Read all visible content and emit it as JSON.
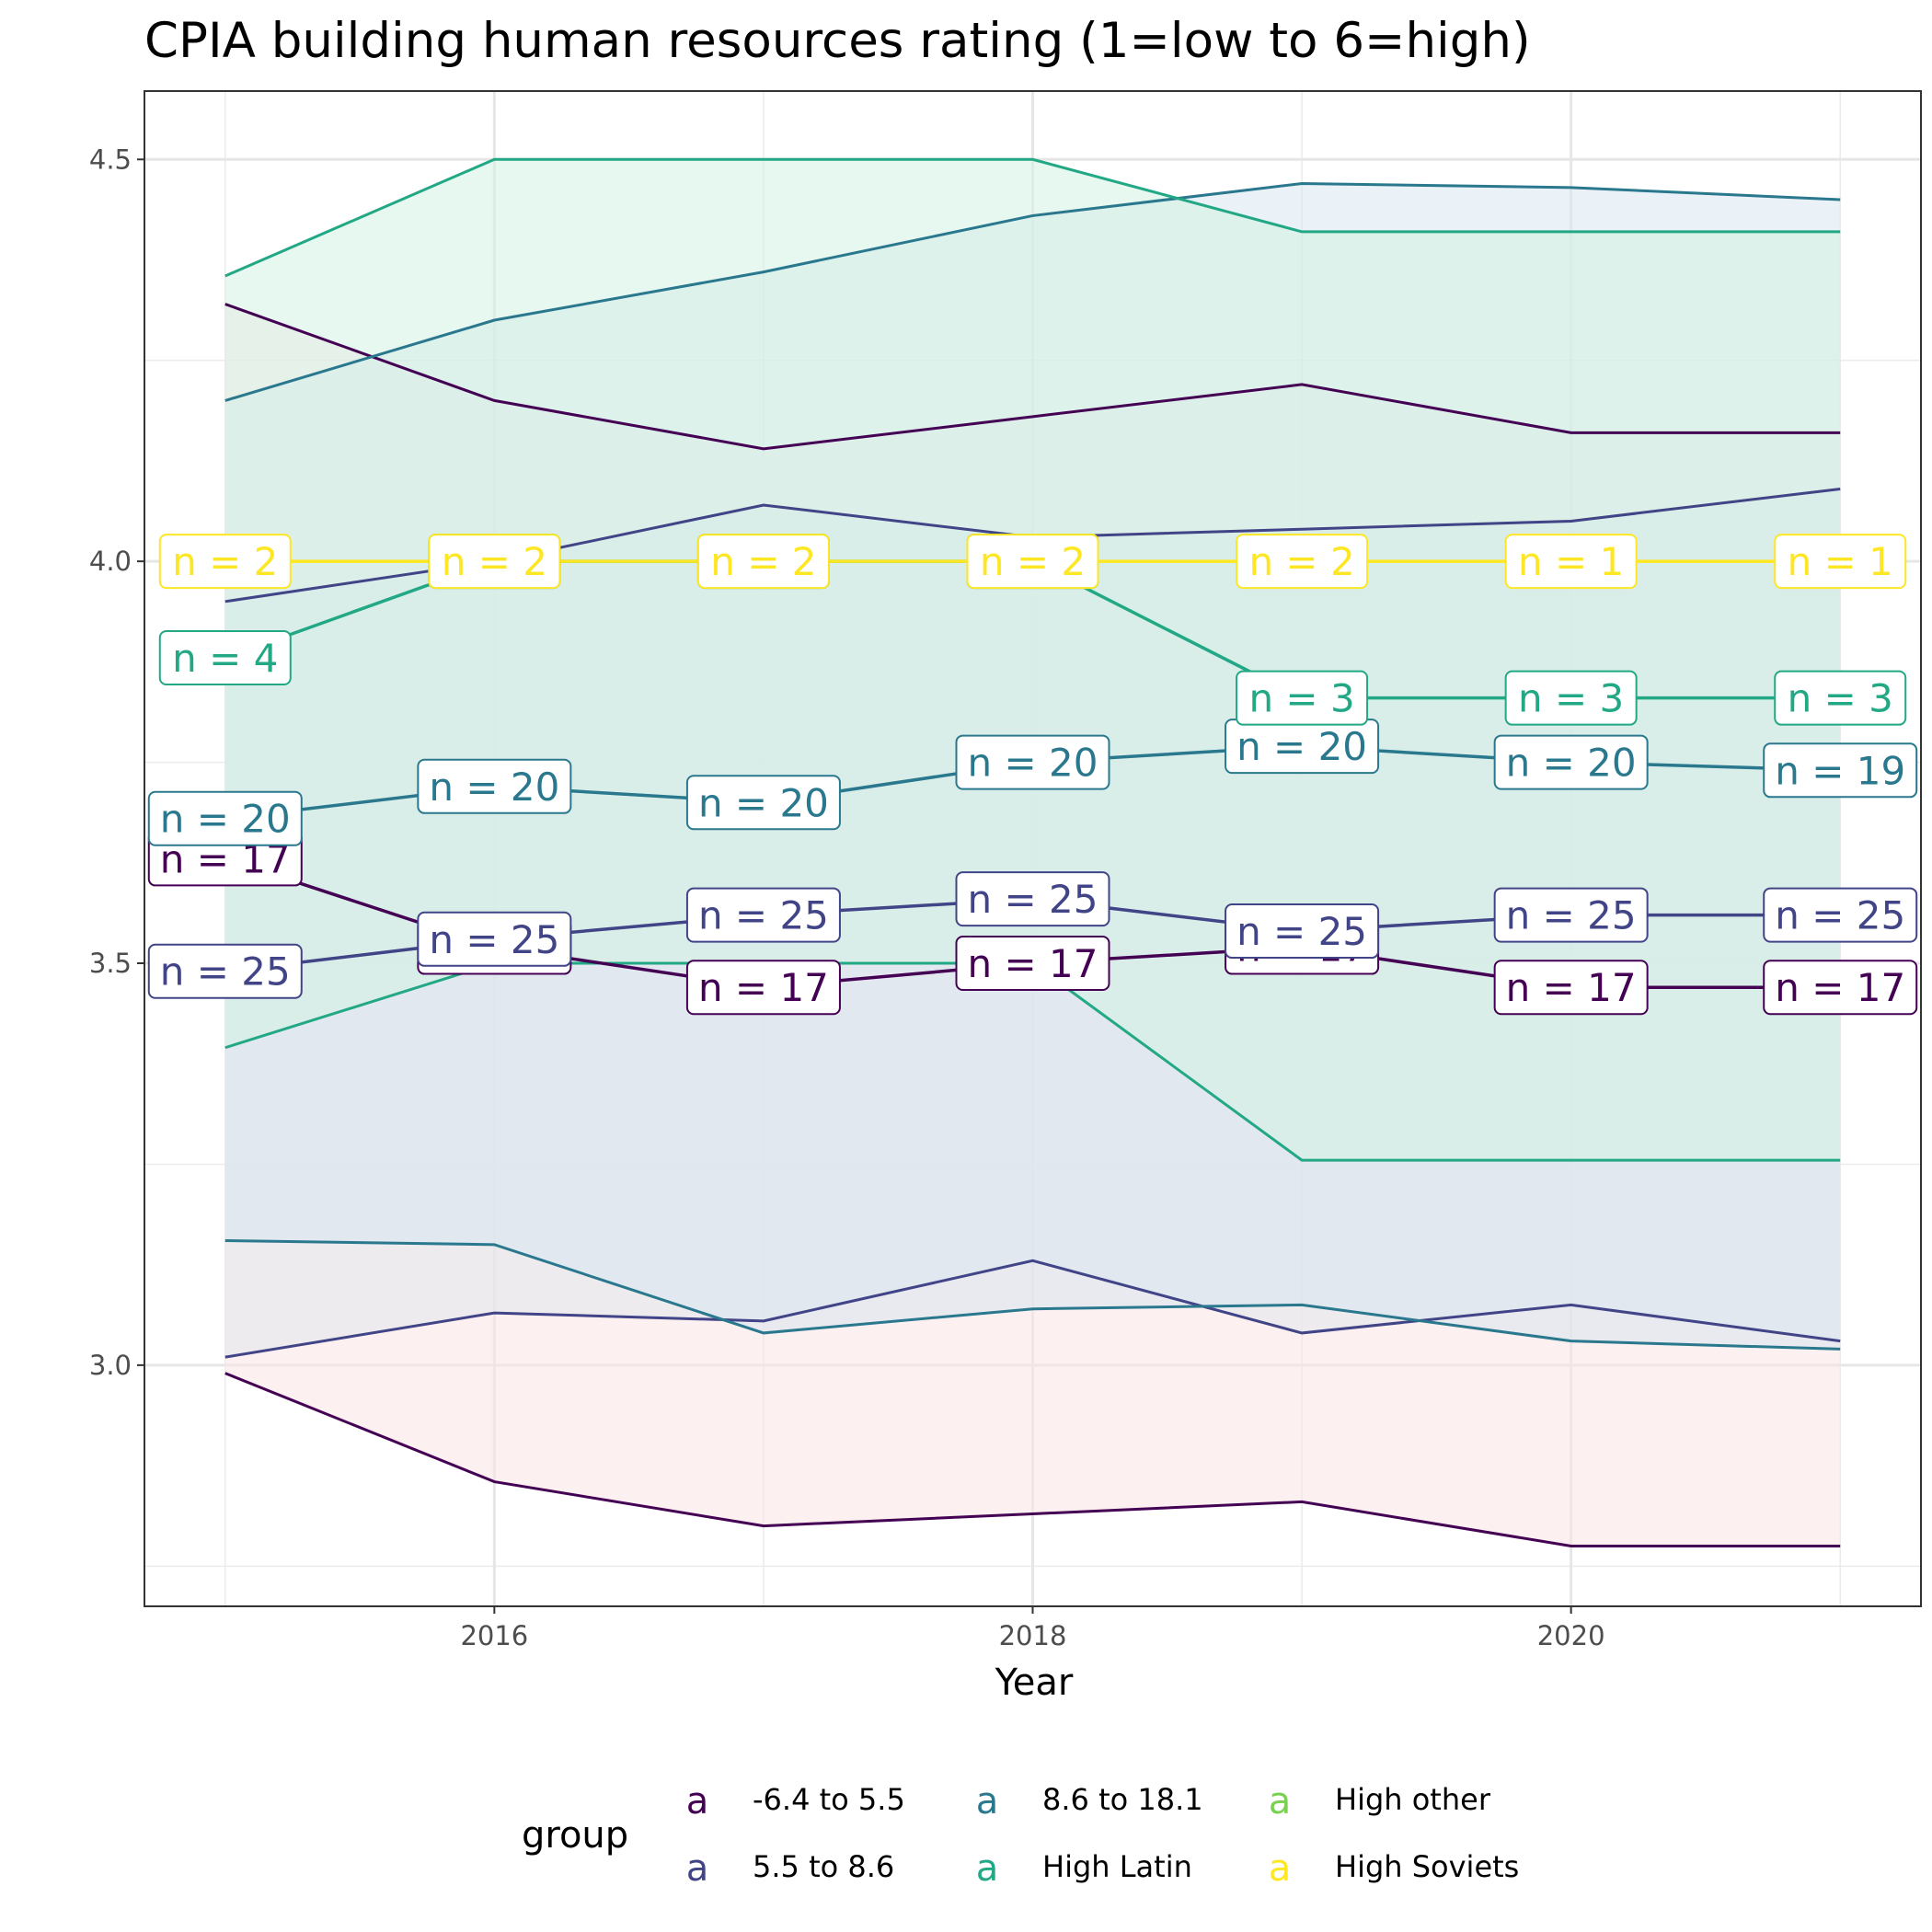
{
  "chart_data": {
    "type": "line",
    "title": "CPIA building human resources rating (1=low to 6=high)",
    "xlabel": "Year",
    "ylabel": "",
    "xlim": [
      2014.7,
      2021.3
    ],
    "ylim": [
      2.7,
      4.585
    ],
    "x_ticks": [
      2016,
      2018,
      2020
    ],
    "y_ticks": [
      3.0,
      3.5,
      4.0,
      4.5
    ],
    "y_minor_ticks": [
      2.75,
      3.25,
      3.75,
      4.25
    ],
    "x_minor_ticks": [
      2015,
      2017,
      2019,
      2021
    ],
    "grid": true,
    "legend": {
      "title": "group",
      "position": "bottom",
      "key_glyph": "a",
      "entries": [
        {
          "name": "-6.4 to 5.5",
          "color": "#440154"
        },
        {
          "name": "5.5 to 8.6",
          "color": "#414487"
        },
        {
          "name": "8.6 to 18.1",
          "color": "#2A788E"
        },
        {
          "name": "High Latin",
          "color": "#22A884"
        },
        {
          "name": "High other",
          "color": "#7AD151"
        },
        {
          "name": "High Soviets",
          "color": "#FDE725"
        }
      ]
    },
    "x": [
      2015,
      2016,
      2017,
      2018,
      2019,
      2020,
      2021
    ],
    "series": [
      {
        "name": "-6.4 to 5.5",
        "color": "#440154",
        "ribbon_fill": "#FCE4E4",
        "mean": [
          3.63,
          3.52,
          3.47,
          3.5,
          3.52,
          3.47,
          3.47
        ],
        "upper": [
          4.32,
          4.2,
          4.14,
          4.18,
          4.22,
          4.16,
          4.16
        ],
        "lower": [
          2.99,
          2.855,
          2.8,
          2.815,
          2.83,
          2.775,
          2.775
        ],
        "n": [
          "n = 17",
          "n = 17",
          "n = 17",
          "n = 17",
          "n = 17",
          "n = 17",
          "n = 17"
        ]
      },
      {
        "name": "5.5 to 8.6",
        "color": "#414487",
        "ribbon_fill": "#E1E8EE",
        "mean": [
          3.49,
          3.53,
          3.56,
          3.58,
          3.54,
          3.56,
          3.56
        ],
        "upper": [
          3.95,
          4.0,
          4.07,
          4.03,
          4.04,
          4.05,
          4.09
        ],
        "lower": [
          3.01,
          3.065,
          3.055,
          3.13,
          3.04,
          3.075,
          3.03
        ],
        "n": [
          "n = 25",
          "n = 25",
          "n = 25",
          "n = 25",
          "n = 25",
          "n = 25",
          "n = 25"
        ]
      },
      {
        "name": "8.6 to 18.1",
        "color": "#2A788E",
        "ribbon_fill": "#D9E5F0",
        "mean": [
          3.68,
          3.72,
          3.7,
          3.75,
          3.77,
          3.75,
          3.74
        ],
        "upper": [
          4.2,
          4.3,
          4.36,
          4.43,
          4.47,
          4.465,
          4.45
        ],
        "lower": [
          3.155,
          3.15,
          3.04,
          3.07,
          3.075,
          3.03,
          3.02
        ],
        "n": [
          "n = 20",
          "n = 20",
          "n = 20",
          "n = 20",
          "n = 20",
          "n = 20",
          "n = 19"
        ]
      },
      {
        "name": "High Latin",
        "color": "#22A884",
        "ribbon_fill": "#D4F2E4",
        "mean": [
          3.88,
          4.0,
          4.0,
          4.0,
          3.83,
          3.83,
          3.83
        ],
        "upper": [
          4.355,
          4.5,
          4.5,
          4.5,
          4.41,
          4.41,
          4.41
        ],
        "lower": [
          3.395,
          3.5,
          3.5,
          3.5,
          3.255,
          3.255,
          3.255
        ],
        "n": [
          "n = 4",
          "n = 2",
          "n = 2",
          "n = 2",
          "n = 3",
          "n = 3",
          "n = 3"
        ]
      },
      {
        "name": "High Soviets",
        "color": "#FDE725",
        "ribbon_fill": "#DCF5F5",
        "mean": [
          4.0,
          4.0,
          4.0,
          4.0,
          4.0,
          4.0,
          4.0
        ],
        "upper": [
          4.0,
          4.0,
          4.0,
          4.0,
          4.0,
          4.0,
          4.0
        ],
        "lower": [
          4.0,
          4.0,
          4.0,
          4.0,
          4.0,
          4.0,
          4.0
        ],
        "n": [
          "n = 2",
          "n = 2",
          "n = 2",
          "n = 2",
          "n = 2",
          "n = 1",
          "n = 1"
        ]
      }
    ]
  }
}
